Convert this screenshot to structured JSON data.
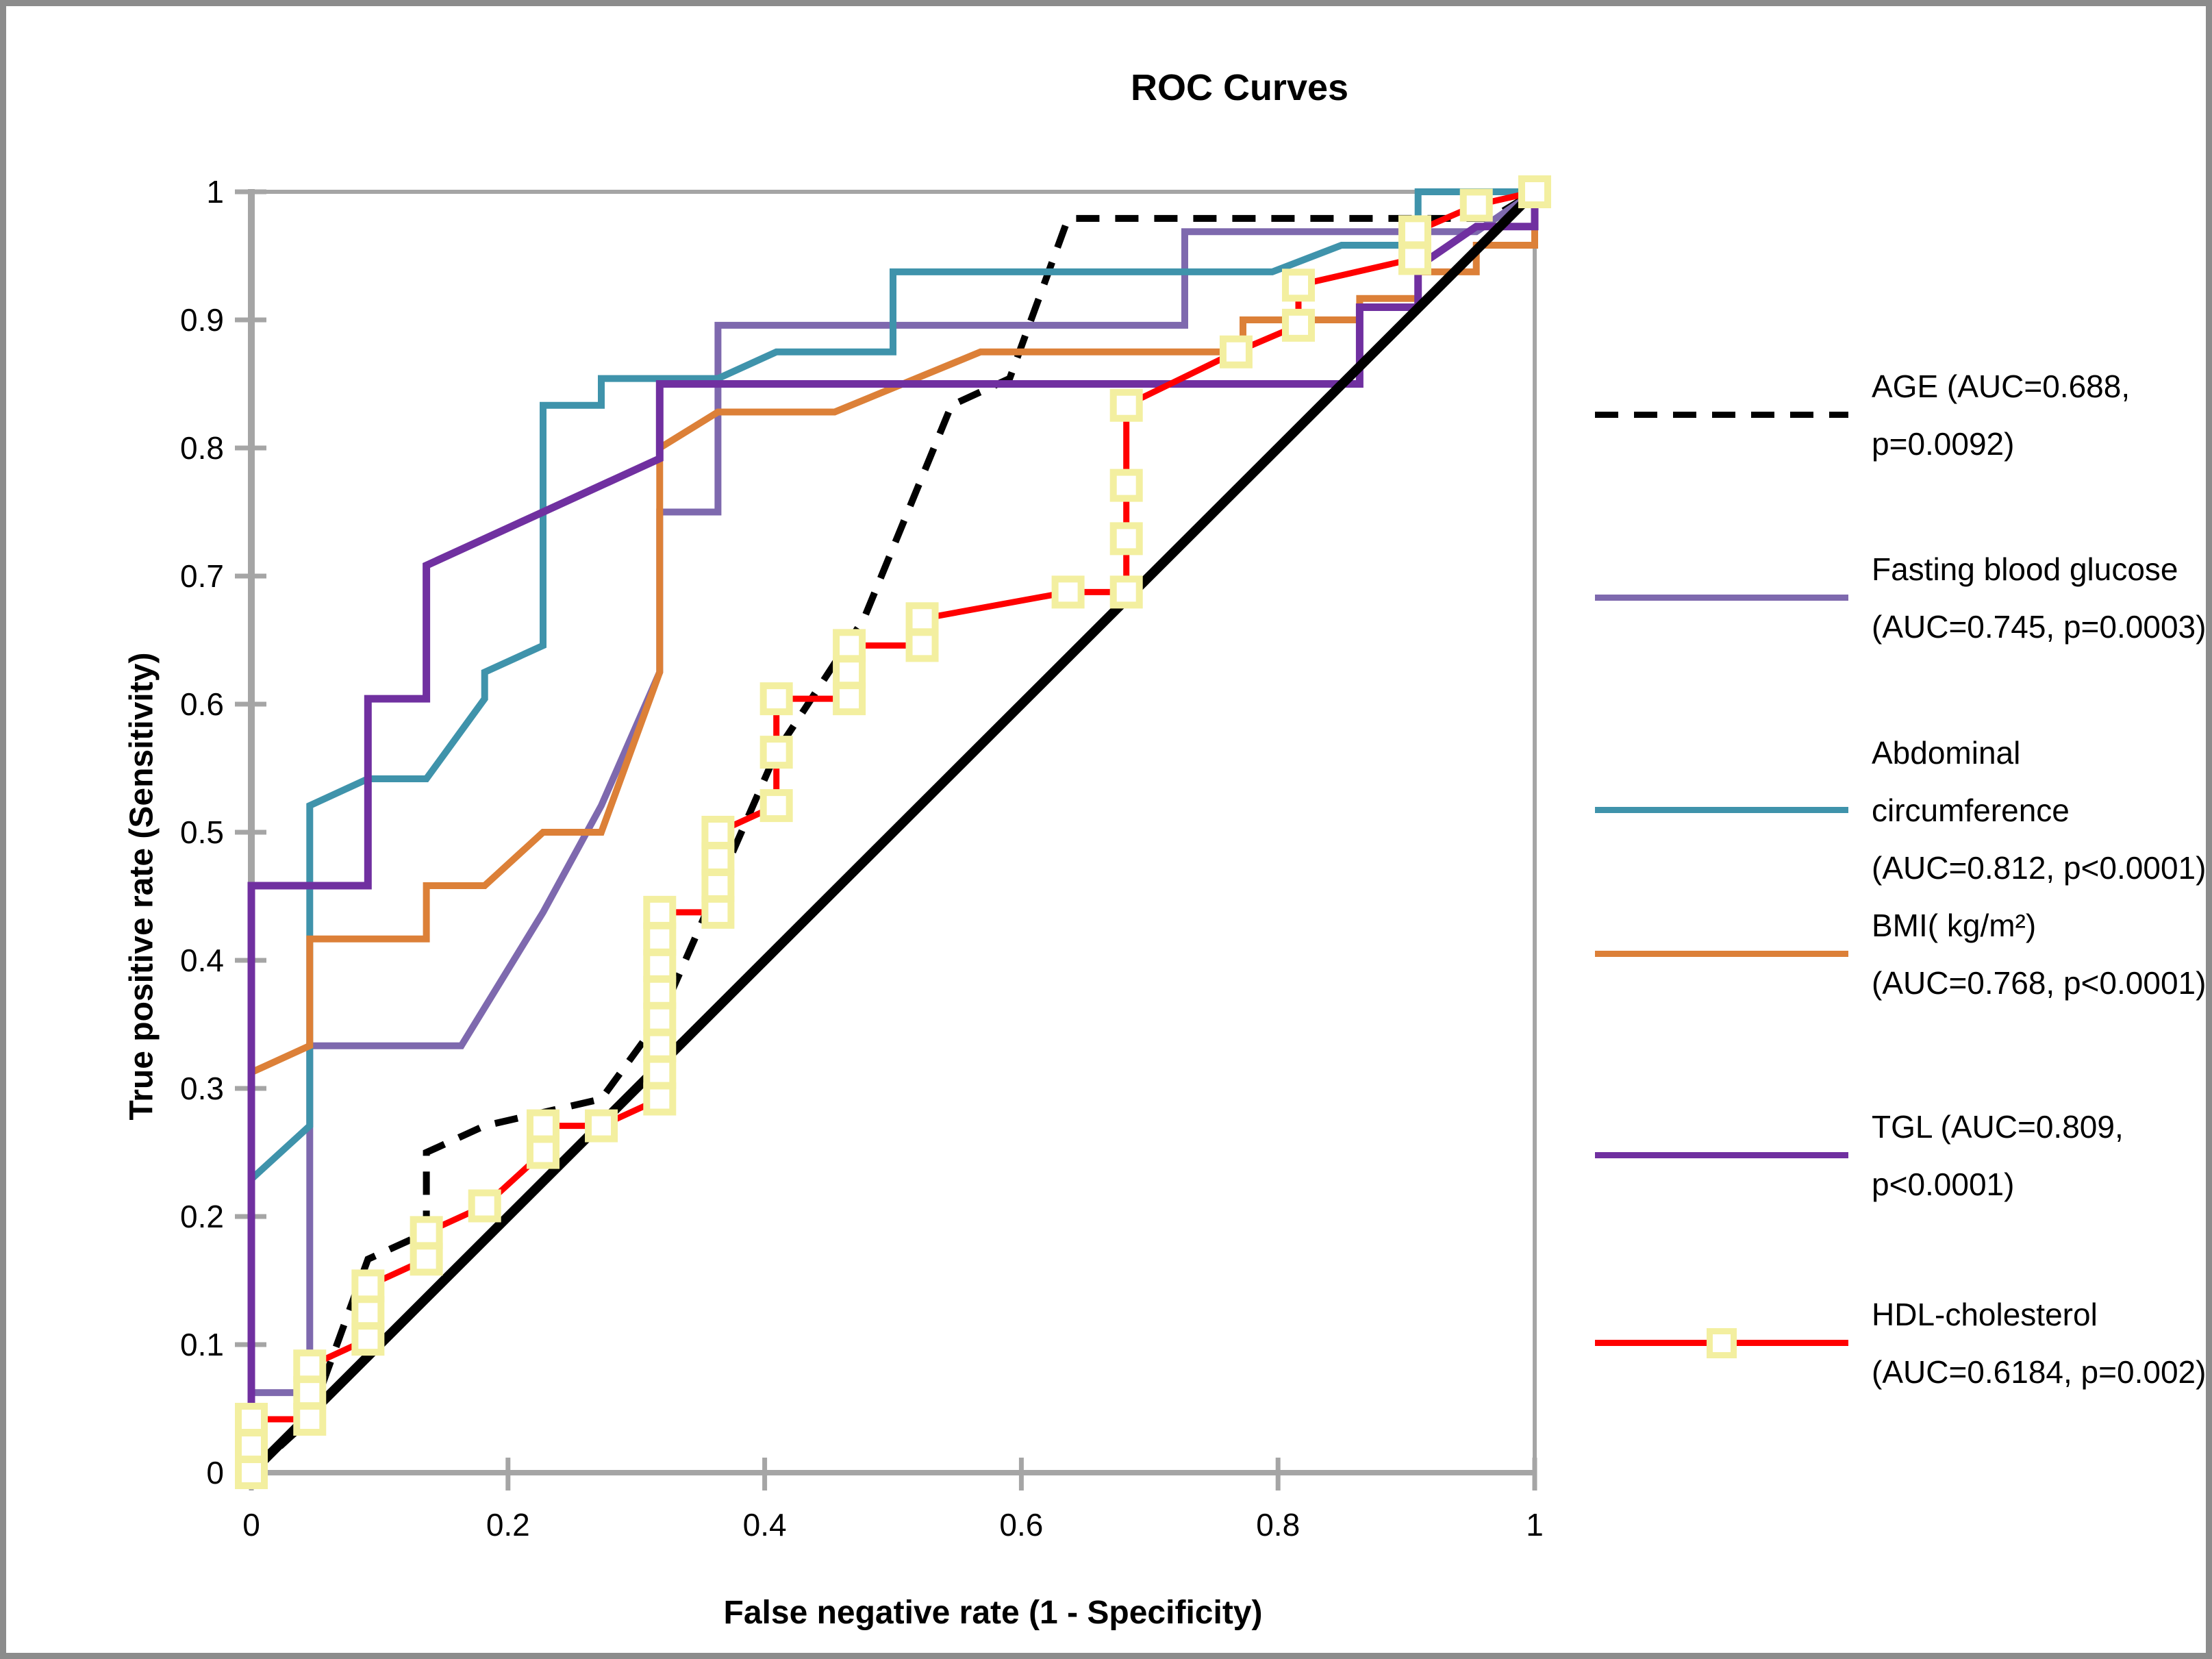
{
  "title": "ROC Curves",
  "axes": {
    "x_title": "False negative rate (1 - Specificity)",
    "y_title": "True positive rate (Sensitivity)",
    "x_tick_labels": [
      "0",
      "0.2",
      "0.4",
      "0.6",
      "0.8",
      "1"
    ],
    "x_tick_values": [
      0,
      0.2,
      0.4,
      0.6,
      0.8,
      1
    ],
    "y_tick_labels": [
      "0",
      "0.1",
      "0.2",
      "0.3",
      "0.4",
      "0.5",
      "0.6",
      "0.7",
      "0.8",
      "0.9",
      "1"
    ],
    "y_tick_values": [
      0,
      0.1,
      0.2,
      0.3,
      0.4,
      0.5,
      0.6,
      0.7,
      0.8,
      0.9,
      1
    ],
    "xlim": [
      0,
      1
    ],
    "ylim": [
      0,
      1
    ]
  },
  "colors": {
    "age": "#000000",
    "fasting_glucose": "#7E69AE",
    "abdominal": "#3F93AB",
    "bmi": "#DC8038",
    "tgl": "#7030A0",
    "hdl": "#FF0000",
    "marker_border": "#F3EFA0",
    "reference": "#000000",
    "axis_gray": "#A5A5A5",
    "outer_border": "#8C8C8C"
  },
  "chart_data": {
    "type": "line",
    "title": "ROC Curves",
    "xlabel": "False negative rate (1 - Specificity)",
    "ylabel": "True positive rate (Sensitivity)",
    "xlim": [
      0,
      1
    ],
    "ylim": [
      0,
      1
    ],
    "grid": false,
    "legend_position": "right",
    "series": [
      {
        "name": "AGE (AUC=0.688, p=0.0092)",
        "auc": "0.688",
        "p": "0.0092",
        "legend_lines": [
          "AGE (AUC=0.688,",
          "p=0.0092)"
        ],
        "color": "#000000",
        "style": "dashed",
        "marker": "none",
        "width": 10,
        "points": [
          [
            0,
            0
          ],
          [
            0.0455,
            0.0417
          ],
          [
            0.0909,
            0.1667
          ],
          [
            0.1364,
            0.1875
          ],
          [
            0.1364,
            0.25
          ],
          [
            0.1818,
            0.2708
          ],
          [
            0.2727,
            0.2917
          ],
          [
            0.3182,
            0.3542
          ],
          [
            0.3636,
            0.4583
          ],
          [
            0.4091,
            0.5625
          ],
          [
            0.4773,
            0.6667
          ],
          [
            0.5455,
            0.8333
          ],
          [
            0.5909,
            0.8542
          ],
          [
            0.6364,
            0.9792
          ],
          [
            0.9659,
            0.9792
          ],
          [
            1,
            1
          ]
        ]
      },
      {
        "name": "Fasting blood glucose (AUC=0.745, p=0.0003)",
        "auc": "0.745",
        "p": "0.0003",
        "legend_lines": [
          "Fasting blood glucose",
          "(AUC=0.745, p=0.0003)"
        ],
        "color": "#7E69AE",
        "style": "solid",
        "marker": "none",
        "width": 10,
        "points": [
          [
            0,
            0
          ],
          [
            0,
            0.0625
          ],
          [
            0.0455,
            0.0625
          ],
          [
            0.0455,
            0.3333
          ],
          [
            0.1636,
            0.3333
          ],
          [
            0.2273,
            0.4375
          ],
          [
            0.2727,
            0.5208
          ],
          [
            0.3182,
            0.625
          ],
          [
            0.3182,
            0.75
          ],
          [
            0.3636,
            0.75
          ],
          [
            0.3636,
            0.8958
          ],
          [
            0.7273,
            0.8958
          ],
          [
            0.7273,
            0.9688
          ],
          [
            0.9545,
            0.9688
          ],
          [
            1,
            1
          ]
        ]
      },
      {
        "name": "Abdominal circumference (AUC=0.812, p<0.0001)",
        "auc": "0.812",
        "p": "<0.0001",
        "legend_lines": [
          "Abdominal",
          "circumference",
          "(AUC=0.812, p<0.0001)"
        ],
        "color": "#3F93AB",
        "style": "solid",
        "marker": "none",
        "width": 10,
        "points": [
          [
            0,
            0
          ],
          [
            0,
            0.2292
          ],
          [
            0.0455,
            0.2708
          ],
          [
            0.0455,
            0.5208
          ],
          [
            0.0909,
            0.5417
          ],
          [
            0.1364,
            0.5417
          ],
          [
            0.1818,
            0.6042
          ],
          [
            0.1818,
            0.625
          ],
          [
            0.2273,
            0.6458
          ],
          [
            0.2273,
            0.8333
          ],
          [
            0.2727,
            0.8333
          ],
          [
            0.2727,
            0.8542
          ],
          [
            0.3636,
            0.8542
          ],
          [
            0.4091,
            0.875
          ],
          [
            0.5,
            0.875
          ],
          [
            0.5,
            0.9375
          ],
          [
            0.7955,
            0.9375
          ],
          [
            0.8495,
            0.9583
          ],
          [
            0.9091,
            0.9583
          ],
          [
            0.9091,
            1
          ],
          [
            1,
            1
          ]
        ]
      },
      {
        "name": "BMI( kg/m²) (AUC=0.768, p<0.0001)",
        "auc": "0.768",
        "p": "<0.0001",
        "legend_lines": [
          "BMI( kg/m²)",
          "(AUC=0.768, p<0.0001)"
        ],
        "color": "#DC8038",
        "style": "solid",
        "marker": "none",
        "width": 10,
        "points": [
          [
            0,
            0
          ],
          [
            0,
            0.3125
          ],
          [
            0.0455,
            0.3333
          ],
          [
            0.0455,
            0.4167
          ],
          [
            0.1364,
            0.4167
          ],
          [
            0.1364,
            0.4583
          ],
          [
            0.1818,
            0.4583
          ],
          [
            0.2273,
            0.5
          ],
          [
            0.2727,
            0.5
          ],
          [
            0.3182,
            0.625
          ],
          [
            0.3182,
            0.8
          ],
          [
            0.3636,
            0.8281
          ],
          [
            0.4545,
            0.8281
          ],
          [
            0.5682,
            0.875
          ],
          [
            0.7727,
            0.875
          ],
          [
            0.7727,
            0.9
          ],
          [
            0.8636,
            0.9
          ],
          [
            0.8636,
            0.9167
          ],
          [
            0.9091,
            0.9167
          ],
          [
            0.9091,
            0.9375
          ],
          [
            0.9545,
            0.9375
          ],
          [
            0.9545,
            0.9583
          ],
          [
            1,
            0.9583
          ],
          [
            1,
            1
          ]
        ]
      },
      {
        "name": "TGL (AUC=0.809, p<0.0001)",
        "auc": "0.809",
        "p": "<0.0001",
        "legend_lines": [
          "TGL (AUC=0.809,",
          "p<0.0001)"
        ],
        "color": "#7030A0",
        "style": "solid",
        "marker": "none",
        "width": 11,
        "points": [
          [
            0,
            0
          ],
          [
            0,
            0.4583
          ],
          [
            0.0909,
            0.4583
          ],
          [
            0.0909,
            0.6042
          ],
          [
            0.1364,
            0.6042
          ],
          [
            0.1364,
            0.7083
          ],
          [
            0.2273,
            0.75
          ],
          [
            0.3182,
            0.7917
          ],
          [
            0.3182,
            0.85
          ],
          [
            0.8636,
            0.85
          ],
          [
            0.8636,
            0.9099
          ],
          [
            0.9091,
            0.9099
          ],
          [
            0.9091,
            0.9417
          ],
          [
            0.9545,
            0.9729
          ],
          [
            1,
            0.9729
          ],
          [
            1,
            1
          ]
        ]
      },
      {
        "name": "HDL-cholesterol (AUC=0.6184, p=0.002)",
        "auc": "0.6184",
        "p": "0.002",
        "legend_lines": [
          "HDL-cholesterol",
          "(AUC=0.6184, p=0.002)"
        ],
        "color": "#FF0000",
        "style": "solid",
        "marker": "square",
        "width": 9,
        "points": [
          [
            0,
            0
          ],
          [
            0,
            0.0208
          ],
          [
            0,
            0.0417
          ],
          [
            0.0455,
            0.0417
          ],
          [
            0.0455,
            0.0625
          ],
          [
            0.0455,
            0.0833
          ],
          [
            0.0909,
            0.1042
          ],
          [
            0.0909,
            0.125
          ],
          [
            0.0909,
            0.1458
          ],
          [
            0.1364,
            0.1667
          ],
          [
            0.1364,
            0.1875
          ],
          [
            0.1818,
            0.2083
          ],
          [
            0.2273,
            0.25
          ],
          [
            0.2273,
            0.2708
          ],
          [
            0.2727,
            0.2708
          ],
          [
            0.3182,
            0.2917
          ],
          [
            0.3182,
            0.3125
          ],
          [
            0.3182,
            0.3333
          ],
          [
            0.3182,
            0.3542
          ],
          [
            0.3182,
            0.375
          ],
          [
            0.3182,
            0.3958
          ],
          [
            0.3182,
            0.4167
          ],
          [
            0.3182,
            0.4375
          ],
          [
            0.3636,
            0.4375
          ],
          [
            0.3636,
            0.4583
          ],
          [
            0.3636,
            0.4792
          ],
          [
            0.3636,
            0.5
          ],
          [
            0.4091,
            0.5208
          ],
          [
            0.4091,
            0.5625
          ],
          [
            0.4091,
            0.6042
          ],
          [
            0.4659,
            0.6042
          ],
          [
            0.4659,
            0.625
          ],
          [
            0.4659,
            0.6458
          ],
          [
            0.5227,
            0.6458
          ],
          [
            0.5227,
            0.6667
          ],
          [
            0.6364,
            0.6875
          ],
          [
            0.6818,
            0.6875
          ],
          [
            0.6818,
            0.7292
          ],
          [
            0.6818,
            0.7708
          ],
          [
            0.6818,
            0.8333
          ],
          [
            0.7673,
            0.875
          ],
          [
            0.8159,
            0.8958
          ],
          [
            0.8159,
            0.9271
          ],
          [
            0.9066,
            0.9479
          ],
          [
            0.9066,
            0.9688
          ],
          [
            0.9545,
            0.9896
          ],
          [
            1,
            1
          ]
        ]
      },
      {
        "name": "reference-diagonal",
        "legend": false,
        "color": "#000000",
        "style": "solid",
        "marker": "none",
        "width": 14,
        "points": [
          [
            0,
            0
          ],
          [
            1,
            1
          ]
        ]
      }
    ]
  }
}
